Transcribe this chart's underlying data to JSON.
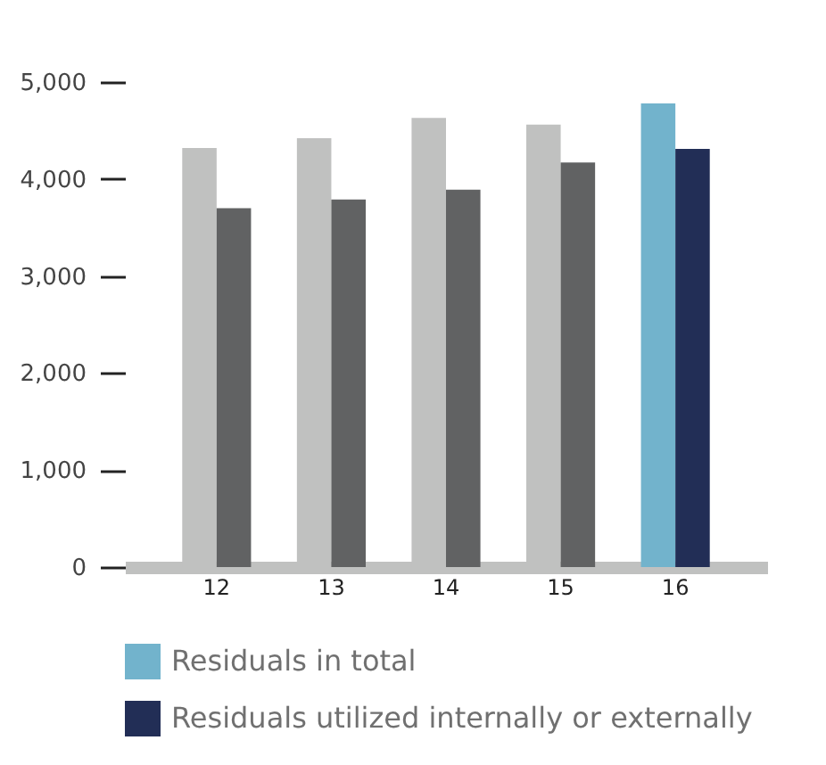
{
  "chart_data": {
    "type": "bar",
    "categories": [
      "12",
      "13",
      "14",
      "15",
      "16"
    ],
    "series": [
      {
        "name": "Residuals in total",
        "color": "#72b3cc",
        "colors": [
          "#c0c1c0",
          "#c0c1c0",
          "#c0c1c0",
          "#c0c1c0",
          "#72b3cc"
        ],
        "values": [
          4320,
          4420,
          4630,
          4560,
          4780
        ]
      },
      {
        "name": "Residuals utilized internally or externally",
        "color": "#222e56",
        "colors": [
          "#616263",
          "#616263",
          "#616263",
          "#616263",
          "#222e56"
        ],
        "values": [
          3700,
          3790,
          3890,
          4170,
          4310
        ]
      }
    ],
    "ylim": [
      0,
      5000
    ],
    "yticks": [
      0,
      {
        "value": 1000,
        "label": "1,000"
      },
      {
        "value": 2000,
        "label": "2,000"
      },
      {
        "value": 3000,
        "label": "3,000"
      },
      {
        "value": 4000,
        "label": "4,000"
      },
      {
        "value": 5000,
        "label": "5,000"
      }
    ],
    "grid": false,
    "legend": "bottom left"
  }
}
